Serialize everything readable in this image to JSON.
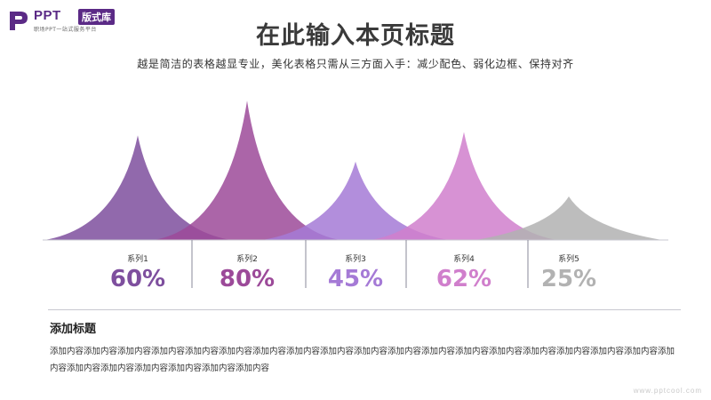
{
  "logo": {
    "brand": "PPT",
    "badge": "版式库",
    "tagline": "职场PPT一站式服务平台"
  },
  "header": {
    "title": "在此输入本页标题",
    "subtitle": "越是简洁的表格越显专业，美化表格只需从三方面入手：减少配色、弱化边框、保持对齐"
  },
  "chart_data": {
    "type": "area",
    "series": [
      {
        "name": "系列1",
        "value": 60,
        "label": "60%",
        "color": "#7e4f9e"
      },
      {
        "name": "系列2",
        "value": 80,
        "label": "80%",
        "color": "#9c4a99"
      },
      {
        "name": "系列3",
        "value": 45,
        "label": "45%",
        "color": "#a57ad6"
      },
      {
        "name": "系列4",
        "value": 62,
        "label": "62%",
        "color": "#d07fcc"
      },
      {
        "name": "系列5",
        "value": 25,
        "label": "25%",
        "color": "#b2b2b2"
      }
    ],
    "ylim": [
      0,
      100
    ]
  },
  "section": {
    "title": "添加标题",
    "body": "添加内容添加内容添加内容添加内容添加内容添加内容添加内容添加内容添加内容添加内容添加内容添加内容添加内容添加内容添加内容添加内容添加内容添加内容添加内容添加内容添加内容添加内容添加内容添加内容添加内容"
  },
  "watermark": "www.pptcool.com"
}
